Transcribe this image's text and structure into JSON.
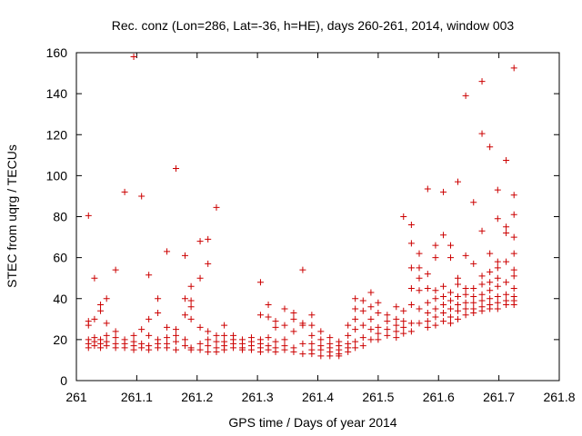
{
  "chart_data": {
    "type": "scatter",
    "title": "Rec. conz (Lon=286, Lat=-36, h=HE), days 260-261, 2014, window 003",
    "xlabel": "GPS time / Days of year 2014",
    "ylabel": "STEC from uqrg / TECUs",
    "xlim": [
      261,
      261.8
    ],
    "ylim": [
      0,
      160
    ],
    "x_ticks": [
      261,
      261.1,
      261.2,
      261.3,
      261.4,
      261.5,
      261.6,
      261.7,
      261.8
    ],
    "x_tick_labels": [
      "261",
      "261.1",
      "261.2",
      "261.3",
      "261.4",
      "261.5",
      "261.6",
      "261.7",
      "261.8"
    ],
    "y_ticks": [
      0,
      20,
      40,
      60,
      80,
      100,
      120,
      140,
      160
    ],
    "y_tick_labels": [
      "0",
      "20",
      "40",
      "60",
      "80",
      "100",
      "120",
      "140",
      "160"
    ],
    "grid": false,
    "legend": "none",
    "marker": "+",
    "marker_color": "#cc0000",
    "series": [
      {
        "points": [
          [
            261.02,
            80.5
          ],
          [
            261.02,
            29
          ],
          [
            261.02,
            27
          ],
          [
            261.02,
            20
          ],
          [
            261.02,
            18
          ],
          [
            261.02,
            16
          ],
          [
            261.03,
            50
          ],
          [
            261.03,
            30
          ],
          [
            261.03,
            21
          ],
          [
            261.03,
            19
          ],
          [
            261.03,
            17
          ],
          [
            261.04,
            37
          ],
          [
            261.04,
            34
          ],
          [
            261.04,
            20
          ],
          [
            261.04,
            18
          ],
          [
            261.04,
            16
          ],
          [
            261.05,
            40
          ],
          [
            261.05,
            28
          ],
          [
            261.05,
            22
          ],
          [
            261.05,
            19
          ],
          [
            261.05,
            17
          ],
          [
            261.065,
            54
          ],
          [
            261.065,
            24
          ],
          [
            261.065,
            21
          ],
          [
            261.065,
            18
          ],
          [
            261.065,
            16
          ],
          [
            261.08,
            92
          ],
          [
            261.08,
            20
          ],
          [
            261.08,
            18
          ],
          [
            261.08,
            16
          ],
          [
            261.095,
            158
          ],
          [
            261.095,
            22
          ],
          [
            261.095,
            19
          ],
          [
            261.095,
            17
          ],
          [
            261.095,
            15
          ],
          [
            261.108,
            90
          ],
          [
            261.108,
            25
          ],
          [
            261.108,
            18
          ],
          [
            261.108,
            16
          ],
          [
            261.12,
            51.5
          ],
          [
            261.12,
            30
          ],
          [
            261.12,
            22
          ],
          [
            261.12,
            17
          ],
          [
            261.12,
            15
          ],
          [
            261.135,
            40
          ],
          [
            261.135,
            33
          ],
          [
            261.135,
            20
          ],
          [
            261.135,
            18
          ],
          [
            261.135,
            16
          ],
          [
            261.15,
            63
          ],
          [
            261.15,
            26
          ],
          [
            261.15,
            21
          ],
          [
            261.15,
            18
          ],
          [
            261.15,
            16
          ],
          [
            261.165,
            103.5
          ],
          [
            261.165,
            25
          ],
          [
            261.165,
            22
          ],
          [
            261.165,
            19
          ],
          [
            261.165,
            15
          ],
          [
            261.18,
            61
          ],
          [
            261.18,
            40
          ],
          [
            261.18,
            32
          ],
          [
            261.18,
            20
          ],
          [
            261.18,
            17
          ],
          [
            261.19,
            46
          ],
          [
            261.19,
            39
          ],
          [
            261.19,
            36
          ],
          [
            261.19,
            30
          ],
          [
            261.19,
            16
          ],
          [
            261.19,
            15
          ],
          [
            261.205,
            68
          ],
          [
            261.205,
            50
          ],
          [
            261.205,
            26
          ],
          [
            261.205,
            18
          ],
          [
            261.205,
            15
          ],
          [
            261.218,
            69
          ],
          [
            261.218,
            57
          ],
          [
            261.218,
            24
          ],
          [
            261.218,
            20
          ],
          [
            261.218,
            17
          ],
          [
            261.218,
            14
          ],
          [
            261.232,
            84.5
          ],
          [
            261.232,
            22
          ],
          [
            261.232,
            19
          ],
          [
            261.232,
            16
          ],
          [
            261.232,
            14
          ],
          [
            261.245,
            27
          ],
          [
            261.245,
            22
          ],
          [
            261.245,
            19
          ],
          [
            261.245,
            17
          ],
          [
            261.245,
            15
          ],
          [
            261.26,
            22
          ],
          [
            261.26,
            20
          ],
          [
            261.26,
            18
          ],
          [
            261.26,
            16
          ],
          [
            261.275,
            20
          ],
          [
            261.275,
            18
          ],
          [
            261.275,
            16
          ],
          [
            261.275,
            15
          ],
          [
            261.29,
            21
          ],
          [
            261.29,
            19
          ],
          [
            261.29,
            17
          ],
          [
            261.29,
            15
          ],
          [
            261.305,
            48
          ],
          [
            261.305,
            32
          ],
          [
            261.305,
            20
          ],
          [
            261.305,
            18
          ],
          [
            261.305,
            16
          ],
          [
            261.305,
            14
          ],
          [
            261.318,
            37
          ],
          [
            261.318,
            31
          ],
          [
            261.318,
            21
          ],
          [
            261.318,
            17
          ],
          [
            261.318,
            15
          ],
          [
            261.33,
            29
          ],
          [
            261.33,
            26
          ],
          [
            261.33,
            19
          ],
          [
            261.33,
            16
          ],
          [
            261.33,
            14
          ],
          [
            261.345,
            35
          ],
          [
            261.345,
            27
          ],
          [
            261.345,
            20
          ],
          [
            261.345,
            17
          ],
          [
            261.345,
            15
          ],
          [
            261.36,
            33
          ],
          [
            261.36,
            30
          ],
          [
            261.36,
            24
          ],
          [
            261.36,
            16
          ],
          [
            261.36,
            14
          ],
          [
            261.375,
            54
          ],
          [
            261.375,
            28
          ],
          [
            261.375,
            27
          ],
          [
            261.375,
            18
          ],
          [
            261.375,
            13
          ],
          [
            261.39,
            32
          ],
          [
            261.39,
            27
          ],
          [
            261.39,
            22
          ],
          [
            261.39,
            18
          ],
          [
            261.39,
            15
          ],
          [
            261.39,
            13
          ],
          [
            261.405,
            24
          ],
          [
            261.405,
            20
          ],
          [
            261.405,
            17
          ],
          [
            261.405,
            15
          ],
          [
            261.405,
            12
          ],
          [
            261.42,
            21
          ],
          [
            261.42,
            18
          ],
          [
            261.42,
            16
          ],
          [
            261.42,
            14
          ],
          [
            261.42,
            12
          ],
          [
            261.435,
            19
          ],
          [
            261.435,
            17
          ],
          [
            261.435,
            15
          ],
          [
            261.435,
            13
          ],
          [
            261.435,
            12
          ],
          [
            261.45,
            27
          ],
          [
            261.45,
            22
          ],
          [
            261.45,
            18
          ],
          [
            261.45,
            16
          ],
          [
            261.45,
            14
          ],
          [
            261.462,
            40
          ],
          [
            261.462,
            35
          ],
          [
            261.462,
            30
          ],
          [
            261.462,
            25
          ],
          [
            261.462,
            19
          ],
          [
            261.462,
            16
          ],
          [
            261.475,
            39
          ],
          [
            261.475,
            34
          ],
          [
            261.475,
            27
          ],
          [
            261.475,
            21
          ],
          [
            261.475,
            17
          ],
          [
            261.488,
            43
          ],
          [
            261.488,
            36
          ],
          [
            261.488,
            30
          ],
          [
            261.488,
            25
          ],
          [
            261.488,
            20
          ],
          [
            261.5,
            38
          ],
          [
            261.5,
            33
          ],
          [
            261.5,
            26
          ],
          [
            261.5,
            23
          ],
          [
            261.5,
            20
          ],
          [
            261.515,
            32
          ],
          [
            261.515,
            29
          ],
          [
            261.515,
            25
          ],
          [
            261.515,
            22
          ],
          [
            261.53,
            36
          ],
          [
            261.53,
            30
          ],
          [
            261.53,
            27
          ],
          [
            261.53,
            24
          ],
          [
            261.53,
            21
          ],
          [
            261.542,
            80
          ],
          [
            261.542,
            34
          ],
          [
            261.542,
            29
          ],
          [
            261.542,
            26
          ],
          [
            261.542,
            23
          ],
          [
            261.555,
            76
          ],
          [
            261.555,
            67
          ],
          [
            261.555,
            55
          ],
          [
            261.555,
            45
          ],
          [
            261.555,
            37
          ],
          [
            261.555,
            28
          ],
          [
            261.555,
            24
          ],
          [
            261.568,
            62
          ],
          [
            261.568,
            55
          ],
          [
            261.568,
            50
          ],
          [
            261.568,
            44
          ],
          [
            261.568,
            35
          ],
          [
            261.568,
            28
          ],
          [
            261.582,
            93.5
          ],
          [
            261.582,
            52
          ],
          [
            261.582,
            45
          ],
          [
            261.582,
            38
          ],
          [
            261.582,
            33
          ],
          [
            261.582,
            29
          ],
          [
            261.582,
            26
          ],
          [
            261.595,
            66
          ],
          [
            261.595,
            60
          ],
          [
            261.595,
            44
          ],
          [
            261.595,
            40
          ],
          [
            261.595,
            35
          ],
          [
            261.595,
            31
          ],
          [
            261.595,
            27
          ],
          [
            261.608,
            92
          ],
          [
            261.608,
            71
          ],
          [
            261.608,
            46
          ],
          [
            261.608,
            41
          ],
          [
            261.608,
            37
          ],
          [
            261.608,
            33
          ],
          [
            261.608,
            29
          ],
          [
            261.62,
            66
          ],
          [
            261.62,
            60
          ],
          [
            261.62,
            43
          ],
          [
            261.62,
            39
          ],
          [
            261.62,
            35
          ],
          [
            261.62,
            31
          ],
          [
            261.62,
            28
          ],
          [
            261.632,
            97
          ],
          [
            261.632,
            50
          ],
          [
            261.632,
            47
          ],
          [
            261.632,
            41
          ],
          [
            261.632,
            37
          ],
          [
            261.632,
            34
          ],
          [
            261.632,
            30
          ],
          [
            261.645,
            139
          ],
          [
            261.645,
            61
          ],
          [
            261.645,
            45
          ],
          [
            261.645,
            42
          ],
          [
            261.645,
            38
          ],
          [
            261.645,
            35
          ],
          [
            261.645,
            32
          ],
          [
            261.658,
            87
          ],
          [
            261.658,
            57
          ],
          [
            261.658,
            45
          ],
          [
            261.658,
            41
          ],
          [
            261.658,
            38
          ],
          [
            261.658,
            35
          ],
          [
            261.658,
            33
          ],
          [
            261.672,
            146
          ],
          [
            261.672,
            120.5
          ],
          [
            261.672,
            73
          ],
          [
            261.672,
            51
          ],
          [
            261.672,
            47
          ],
          [
            261.672,
            42
          ],
          [
            261.672,
            39
          ],
          [
            261.672,
            36
          ],
          [
            261.672,
            34
          ],
          [
            261.685,
            114
          ],
          [
            261.685,
            62
          ],
          [
            261.685,
            53
          ],
          [
            261.685,
            48
          ],
          [
            261.685,
            44
          ],
          [
            261.685,
            40
          ],
          [
            261.685,
            37
          ],
          [
            261.685,
            35
          ],
          [
            261.698,
            93
          ],
          [
            261.698,
            79
          ],
          [
            261.698,
            58
          ],
          [
            261.698,
            55
          ],
          [
            261.698,
            50
          ],
          [
            261.698,
            46
          ],
          [
            261.698,
            41
          ],
          [
            261.698,
            38
          ],
          [
            261.698,
            35
          ],
          [
            261.712,
            107.5
          ],
          [
            261.712,
            75
          ],
          [
            261.712,
            72
          ],
          [
            261.712,
            58
          ],
          [
            261.712,
            48
          ],
          [
            261.712,
            42
          ],
          [
            261.712,
            39
          ],
          [
            261.712,
            37
          ],
          [
            261.725,
            152.5
          ],
          [
            261.725,
            90.5
          ],
          [
            261.725,
            81
          ],
          [
            261.725,
            70
          ],
          [
            261.725,
            62
          ],
          [
            261.725,
            54
          ],
          [
            261.725,
            51
          ],
          [
            261.725,
            45
          ],
          [
            261.725,
            41
          ],
          [
            261.725,
            39
          ],
          [
            261.725,
            37
          ]
        ]
      }
    ]
  }
}
